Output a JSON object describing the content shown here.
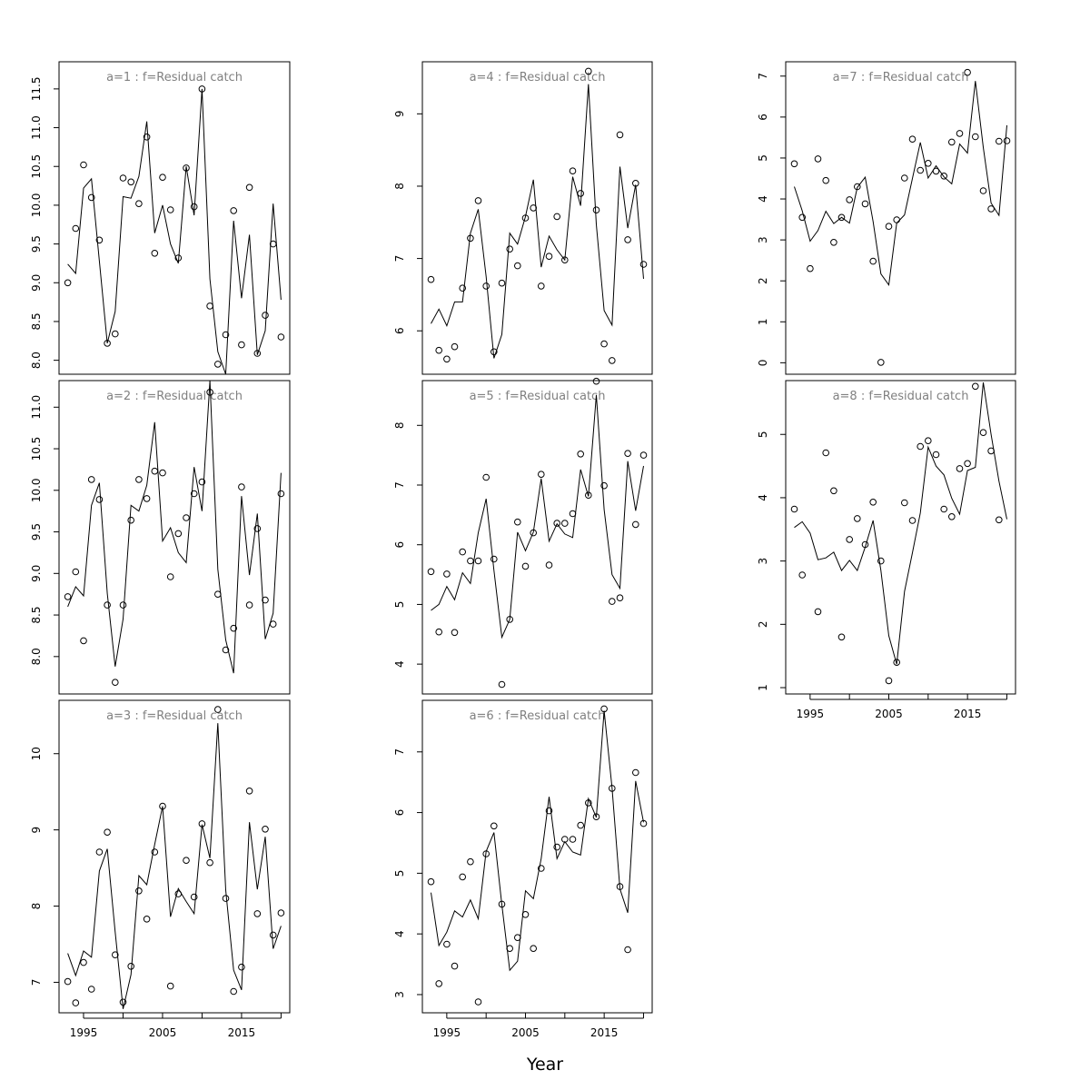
{
  "figure": {
    "xlabel": "Year"
  },
  "chart_data": [
    {
      "type": "line",
      "title": "a=1  :  f=Residual catch",
      "xlabel": "Year",
      "ylabel": "",
      "yticks": [
        8.0,
        8.5,
        9.0,
        9.5,
        10.0,
        10.5,
        11.0,
        11.5
      ],
      "ytick_labels": [
        "8.0",
        "8.5",
        "9.0",
        "9.5",
        "10.0",
        "10.5",
        "11.0",
        "11.5"
      ],
      "xticks": [
        1995,
        2005,
        2015
      ],
      "xtick_labels": [],
      "ylim": [
        7.82,
        11.85
      ],
      "xlim": [
        1991.9,
        2021.1
      ],
      "x": [
        1993,
        1994,
        1995,
        1996,
        1997,
        1998,
        1999,
        2000,
        2001,
        2002,
        2003,
        2004,
        2005,
        2006,
        2007,
        2008,
        2009,
        2010,
        2011,
        2012,
        2013,
        2014,
        2015,
        2016,
        2017,
        2018,
        2019,
        2020
      ],
      "series": [
        {
          "kind": "fitted line",
          "values": [
            9.24,
            9.12,
            10.22,
            10.34,
            9.28,
            8.22,
            8.63,
            10.11,
            10.09,
            10.37,
            11.08,
            9.64,
            10.0,
            9.5,
            9.25,
            10.5,
            9.87,
            11.5,
            9.05,
            8.11,
            7.82,
            9.8,
            8.8,
            9.62,
            8.07,
            8.38,
            10.02,
            8.78
          ]
        },
        {
          "kind": "observed points",
          "values": [
            9.0,
            9.7,
            10.52,
            10.1,
            9.55,
            8.22,
            8.34,
            10.35,
            10.3,
            10.02,
            10.88,
            9.38,
            10.36,
            9.94,
            9.32,
            10.48,
            9.98,
            11.5,
            8.7,
            7.95,
            8.33,
            9.93,
            8.2,
            10.23,
            8.09,
            8.58,
            9.5,
            8.3
          ]
        }
      ]
    },
    {
      "type": "line",
      "title": "a=2  :  f=Residual catch",
      "xlabel": "Year",
      "ylabel": "",
      "yticks": [
        8.0,
        8.5,
        9.0,
        9.5,
        10.0,
        10.5,
        11.0
      ],
      "ytick_labels": [
        "8.0",
        "8.5",
        "9.0",
        "9.5",
        "10.0",
        "10.5",
        "11.0"
      ],
      "xticks": [
        1995,
        2005,
        2015
      ],
      "xtick_labels": [],
      "ylim": [
        7.55,
        11.32
      ],
      "xlim": [
        1991.9,
        2021.1
      ],
      "x": [
        1993,
        1994,
        1995,
        1996,
        1997,
        1998,
        1999,
        2000,
        2001,
        2002,
        2003,
        2004,
        2005,
        2006,
        2007,
        2008,
        2009,
        2010,
        2011,
        2012,
        2013,
        2014,
        2015,
        2016,
        2017,
        2018,
        2019,
        2020
      ],
      "series": [
        {
          "kind": "fitted line",
          "values": [
            8.6,
            8.84,
            8.73,
            9.82,
            10.09,
            8.76,
            7.88,
            8.45,
            9.82,
            9.75,
            10.06,
            10.82,
            9.39,
            9.55,
            9.25,
            9.13,
            10.28,
            9.75,
            11.32,
            9.05,
            8.2,
            7.8,
            9.93,
            8.98,
            9.72,
            8.21,
            8.52,
            10.21
          ]
        },
        {
          "kind": "observed points",
          "values": [
            8.72,
            9.02,
            8.19,
            10.13,
            9.89,
            8.62,
            7.69,
            8.62,
            9.64,
            10.13,
            9.9,
            10.23,
            10.21,
            8.96,
            9.48,
            9.67,
            9.96,
            10.1,
            11.18,
            8.75,
            8.08,
            8.34,
            10.04,
            8.62,
            9.54,
            8.68,
            8.39,
            9.96
          ]
        }
      ]
    },
    {
      "type": "line",
      "title": "a=3  :  f=Residual catch",
      "xlabel": "Year",
      "ylabel": "",
      "yticks": [
        7,
        8,
        9,
        10
      ],
      "ytick_labels": [
        "7",
        "8",
        "9",
        "10"
      ],
      "xticks": [
        1995,
        2005,
        2015
      ],
      "xtick_labels": [
        "1995",
        "2005",
        "2015"
      ],
      "ylim": [
        6.6,
        10.7
      ],
      "xlim": [
        1991.9,
        2021.1
      ],
      "x": [
        1993,
        1994,
        1995,
        1996,
        1997,
        1998,
        1999,
        2000,
        2001,
        2002,
        2003,
        2004,
        2005,
        2006,
        2007,
        2008,
        2009,
        2010,
        2011,
        2012,
        2013,
        2014,
        2015,
        2016,
        2017,
        2018,
        2019,
        2020
      ],
      "series": [
        {
          "kind": "fitted line",
          "values": [
            7.38,
            7.09,
            7.41,
            7.33,
            8.46,
            8.75,
            7.66,
            6.65,
            7.1,
            8.4,
            8.28,
            8.81,
            9.31,
            7.86,
            8.23,
            8.06,
            7.9,
            9.07,
            8.63,
            10.4,
            8.21,
            7.16,
            6.9,
            9.1,
            8.22,
            8.91,
            7.44,
            7.74
          ]
        },
        {
          "kind": "observed points",
          "values": [
            7.01,
            6.73,
            7.26,
            6.91,
            8.71,
            8.97,
            7.36,
            6.74,
            7.21,
            8.2,
            7.83,
            8.71,
            9.31,
            6.95,
            8.16,
            8.6,
            8.12,
            9.08,
            8.57,
            10.58,
            8.1,
            6.88,
            7.2,
            9.51,
            7.9,
            9.01,
            7.62,
            7.91
          ]
        }
      ]
    },
    {
      "type": "line",
      "title": "a=4  :  f=Residual catch",
      "xlabel": "Year",
      "ylabel": "",
      "yticks": [
        6,
        7,
        8,
        9
      ],
      "ytick_labels": [
        "6",
        "7",
        "8",
        "9"
      ],
      "xticks": [
        1995,
        2005,
        2015
      ],
      "xtick_labels": [],
      "ylim": [
        5.4,
        9.72
      ],
      "xlim": [
        1991.9,
        2021.1
      ],
      "x": [
        1993,
        1994,
        1995,
        1996,
        1997,
        1998,
        1999,
        2000,
        2001,
        2002,
        2003,
        2004,
        2005,
        2006,
        2007,
        2008,
        2009,
        2010,
        2011,
        2012,
        2013,
        2014,
        2015,
        2016,
        2017,
        2018,
        2019,
        2020
      ],
      "series": [
        {
          "kind": "fitted line",
          "values": [
            6.1,
            6.3,
            6.07,
            6.4,
            6.4,
            7.35,
            7.68,
            6.75,
            5.62,
            5.95,
            7.35,
            7.2,
            7.58,
            8.09,
            6.88,
            7.31,
            7.12,
            6.98,
            8.13,
            7.73,
            9.41,
            7.47,
            6.28,
            6.08,
            8.27,
            7.42,
            8.02,
            6.72
          ]
        },
        {
          "kind": "observed points",
          "values": [
            6.71,
            5.73,
            5.61,
            5.78,
            6.59,
            7.28,
            7.8,
            6.62,
            5.71,
            6.66,
            7.13,
            6.9,
            7.56,
            7.7,
            6.62,
            7.03,
            7.58,
            6.98,
            8.21,
            7.9,
            9.59,
            7.67,
            5.82,
            5.59,
            8.71,
            7.26,
            8.04,
            6.92
          ]
        }
      ]
    },
    {
      "type": "line",
      "title": "a=5  :  f=Residual catch",
      "xlabel": "Year",
      "ylabel": "",
      "yticks": [
        4,
        5,
        6,
        7,
        8
      ],
      "ytick_labels": [
        "4",
        "5",
        "6",
        "7",
        "8"
      ],
      "xticks": [
        1995,
        2005,
        2015
      ],
      "xtick_labels": [],
      "ylim": [
        3.5,
        8.75
      ],
      "xlim": [
        1991.9,
        2021.1
      ],
      "x": [
        1993,
        1994,
        1995,
        1996,
        1997,
        1998,
        1999,
        2000,
        2001,
        2002,
        2003,
        2004,
        2005,
        2006,
        2007,
        2008,
        2009,
        2010,
        2011,
        2012,
        2013,
        2014,
        2015,
        2016,
        2017,
        2018,
        2019,
        2020
      ],
      "series": [
        {
          "kind": "fitted line",
          "values": [
            4.9,
            5.0,
            5.3,
            5.08,
            5.53,
            5.35,
            6.2,
            6.77,
            5.57,
            4.45,
            4.75,
            6.21,
            5.9,
            6.21,
            7.11,
            6.06,
            6.35,
            6.18,
            6.12,
            7.26,
            6.81,
            8.51,
            6.59,
            5.5,
            5.27,
            7.4,
            6.57,
            7.32
          ]
        },
        {
          "kind": "observed points",
          "values": [
            5.55,
            4.54,
            5.51,
            4.53,
            5.88,
            5.73,
            5.73,
            7.13,
            5.76,
            3.66,
            4.75,
            6.38,
            5.64,
            6.2,
            7.18,
            5.66,
            6.36,
            6.36,
            6.52,
            7.52,
            6.83,
            8.74,
            6.99,
            5.05,
            5.11,
            7.53,
            6.34,
            7.5
          ]
        }
      ]
    },
    {
      "type": "line",
      "title": "a=6  :  f=Residual catch",
      "xlabel": "Year",
      "ylabel": "",
      "yticks": [
        3,
        4,
        5,
        6,
        7
      ],
      "ytick_labels": [
        "3",
        "4",
        "5",
        "6",
        "7"
      ],
      "xticks": [
        1995,
        2005,
        2015
      ],
      "xtick_labels": [
        "1995",
        "2005",
        "2015"
      ],
      "ylim": [
        2.7,
        7.85
      ],
      "xlim": [
        1991.9,
        2021.1
      ],
      "x": [
        1993,
        1994,
        1995,
        1996,
        1997,
        1998,
        1999,
        2000,
        2001,
        2002,
        2003,
        2004,
        2005,
        2006,
        2007,
        2008,
        2009,
        2010,
        2011,
        2012,
        2013,
        2014,
        2015,
        2016,
        2017,
        2018,
        2019,
        2020
      ],
      "series": [
        {
          "kind": "fitted line",
          "values": [
            4.68,
            3.81,
            4.03,
            4.38,
            4.28,
            4.56,
            4.25,
            5.36,
            5.67,
            4.48,
            3.4,
            3.55,
            4.71,
            4.58,
            5.24,
            6.26,
            5.24,
            5.52,
            5.35,
            5.3,
            6.23,
            5.92,
            7.68,
            6.41,
            4.74,
            4.35,
            6.52,
            5.84
          ]
        },
        {
          "kind": "observed points",
          "values": [
            4.86,
            3.18,
            3.83,
            3.47,
            4.94,
            5.19,
            2.88,
            5.32,
            5.78,
            4.49,
            3.76,
            3.94,
            4.32,
            3.76,
            5.08,
            6.03,
            5.43,
            5.56,
            5.56,
            5.79,
            6.16,
            5.93,
            7.71,
            6.4,
            4.78,
            3.74,
            6.66,
            5.82
          ]
        }
      ]
    },
    {
      "type": "line",
      "title": "a=7  :  f=Residual catch",
      "xlabel": "Year",
      "ylabel": "",
      "yticks": [
        0,
        1,
        2,
        3,
        4,
        5,
        6,
        7
      ],
      "ytick_labels": [
        "0",
        "1",
        "2",
        "3",
        "4",
        "5",
        "6",
        "7"
      ],
      "xticks": [
        1995,
        2005,
        2015
      ],
      "xtick_labels": [],
      "ylim": [
        -0.28,
        7.35
      ],
      "xlim": [
        1991.9,
        2021.1
      ],
      "x": [
        1993,
        1994,
        1995,
        1996,
        1997,
        1998,
        1999,
        2000,
        2001,
        2002,
        2003,
        2004,
        2005,
        2006,
        2007,
        2008,
        2009,
        2010,
        2011,
        2012,
        2013,
        2014,
        2015,
        2016,
        2017,
        2018,
        2019,
        2020
      ],
      "series": [
        {
          "kind": "fitted line",
          "values": [
            4.3,
            3.71,
            2.97,
            3.23,
            3.7,
            3.4,
            3.55,
            3.41,
            4.28,
            4.53,
            3.45,
            2.17,
            1.9,
            3.41,
            3.61,
            4.5,
            5.38,
            4.51,
            4.81,
            4.54,
            4.37,
            5.34,
            5.12,
            6.88,
            5.26,
            3.9,
            3.6,
            5.8
          ]
        },
        {
          "kind": "observed points",
          "values": [
            4.86,
            3.55,
            2.3,
            4.98,
            4.45,
            2.94,
            3.55,
            3.98,
            4.3,
            3.88,
            2.48,
            0.01,
            3.33,
            3.49,
            4.51,
            5.46,
            4.7,
            4.87,
            4.68,
            4.56,
            5.39,
            5.6,
            7.09,
            5.52,
            4.2,
            3.76,
            5.41,
            5.42
          ]
        }
      ]
    },
    {
      "type": "line",
      "title": "a=8  :  f=Residual catch",
      "xlabel": "Year",
      "ylabel": "",
      "yticks": [
        1,
        2,
        3,
        4,
        5
      ],
      "ytick_labels": [
        "1",
        "2",
        "3",
        "4",
        "5"
      ],
      "xticks": [
        1995,
        2005,
        2015
      ],
      "xtick_labels": [
        "1995",
        "2005",
        "2015"
      ],
      "ylim": [
        0.9,
        5.85
      ],
      "xlim": [
        1991.9,
        2021.1
      ],
      "x": [
        1993,
        1994,
        1995,
        1996,
        1997,
        1998,
        1999,
        2000,
        2001,
        2002,
        2003,
        2004,
        2005,
        2006,
        2007,
        2008,
        2009,
        2010,
        2011,
        2012,
        2013,
        2014,
        2015,
        2016,
        2017,
        2018,
        2019,
        2020
      ],
      "series": [
        {
          "kind": "fitted line",
          "values": [
            3.53,
            3.62,
            3.44,
            3.02,
            3.05,
            3.14,
            2.85,
            3.01,
            2.85,
            3.22,
            3.64,
            2.85,
            1.82,
            1.37,
            2.52,
            3.13,
            3.76,
            4.8,
            4.5,
            4.36,
            3.99,
            3.74,
            4.43,
            4.48,
            5.82,
            5.0,
            4.26,
            3.66
          ]
        },
        {
          "kind": "observed points",
          "values": [
            3.82,
            2.78,
            null,
            2.2,
            4.71,
            4.11,
            1.8,
            3.34,
            3.67,
            3.26,
            3.93,
            3.0,
            1.11,
            1.4,
            3.92,
            3.64,
            4.81,
            4.9,
            4.68,
            3.82,
            3.7,
            4.46,
            4.54,
            5.76,
            5.03,
            4.74,
            3.65,
            null
          ]
        }
      ]
    }
  ]
}
